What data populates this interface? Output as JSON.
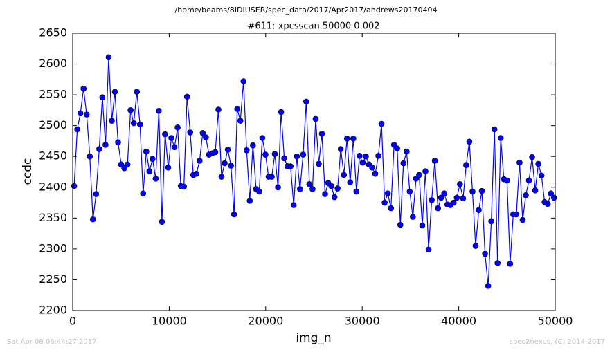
{
  "chart_data": {
    "type": "line",
    "suptitle": "/home/beams/8IDIUSER/spec_data/2017/Apr2017/andrews20170404",
    "title": "#611: xpcsscan 50000 0.002",
    "xlabel": "img_n",
    "ylabel": "ccdc",
    "footer_left": "Sat Apr 08 06:44:27 2017",
    "footer_right": "spec2nexus, (C) 2014-2017",
    "color": "#0000ff",
    "marker": "o",
    "x": [
      150,
      475,
      800,
      1125,
      1450,
      1775,
      2100,
      2425,
      2750,
      3075,
      3400,
      3725,
      4050,
      4375,
      4700,
      5025,
      5350,
      5675,
      6000,
      6325,
      6650,
      6975,
      7300,
      7625,
      7950,
      8275,
      8600,
      8925,
      9250,
      9575,
      9900,
      10225,
      10550,
      10875,
      11200,
      11525,
      11850,
      12175,
      12500,
      12825,
      13150,
      13475,
      13800,
      14125,
      14450,
      14775,
      15100,
      15425,
      15750,
      16075,
      16400,
      16725,
      17050,
      17375,
      17700,
      18025,
      18350,
      18675,
      19000,
      19325,
      19650,
      19975,
      20300,
      20625,
      20950,
      21275,
      21600,
      21925,
      22250,
      22575,
      22900,
      23225,
      23550,
      23875,
      24200,
      24525,
      24850,
      25175,
      25500,
      25825,
      26150,
      26475,
      26800,
      27125,
      27450,
      27775,
      28100,
      28425,
      28750,
      29075,
      29400,
      29725,
      30050,
      30375,
      30700,
      31025,
      31350,
      31675,
      32000,
      32325,
      32650,
      32975,
      33300,
      33625,
      33950,
      34275,
      34600,
      34925,
      35250,
      35575,
      35900,
      36225,
      36550,
      36875,
      37200,
      37525,
      37850,
      38175,
      38500,
      38825,
      39150,
      39475,
      39800,
      40125,
      40450,
      40775,
      41100,
      41425,
      41750,
      42075,
      42400,
      42725,
      43050,
      43375,
      43700,
      44025,
      44350,
      44675,
      45000,
      45325,
      45650,
      45975,
      46300,
      46625,
      46950,
      47275,
      47600,
      47925,
      48250,
      48575,
      48900,
      49225,
      49550,
      49875
    ],
    "values": [
      2402,
      2494,
      2520,
      2560,
      2518,
      2450,
      2348,
      2389,
      2462,
      2546,
      2469,
      2611,
      2508,
      2555,
      2473,
      2437,
      2431,
      2437,
      2525,
      2504,
      2555,
      2502,
      2390,
      2458,
      2426,
      2446,
      2414,
      2524,
      2344,
      2486,
      2432,
      2480,
      2465,
      2497,
      2402,
      2401,
      2547,
      2489,
      2420,
      2422,
      2443,
      2488,
      2481,
      2453,
      2455,
      2457,
      2526,
      2417,
      2439,
      2461,
      2435,
      2356,
      2527,
      2508,
      2572,
      2460,
      2378,
      2468,
      2397,
      2393,
      2480,
      2453,
      2417,
      2417,
      2454,
      2400,
      2522,
      2447,
      2434,
      2434,
      2371,
      2450,
      2397,
      2453,
      2539,
      2405,
      2397,
      2511,
      2438,
      2487,
      2389,
      2407,
      2402,
      2384,
      2398,
      2462,
      2420,
      2479,
      2408,
      2479,
      2393,
      2451,
      2440,
      2450,
      2437,
      2432,
      2422,
      2451,
      2503,
      2375,
      2390,
      2366,
      2469,
      2463,
      2339,
      2439,
      2458,
      2393,
      2352,
      2414,
      2420,
      2338,
      2426,
      2299,
      2379,
      2443,
      2366,
      2383,
      2390,
      2372,
      2371,
      2375,
      2383,
      2405,
      2382,
      2436,
      2474,
      2393,
      2305,
      2363,
      2394,
      2292,
      2240,
      2345,
      2494,
      2277,
      2480,
      2413,
      2411,
      2276,
      2356,
      2356,
      2440,
      2347,
      2387,
      2411,
      2449,
      2395,
      2438,
      2419,
      2376,
      2373,
      2390,
      2383
    ],
    "xlim": [
      0,
      50000
    ],
    "xticks": [
      0,
      10000,
      20000,
      30000,
      40000,
      50000
    ],
    "ylim": [
      2200,
      2650
    ],
    "yticks": [
      2200,
      2250,
      2300,
      2350,
      2400,
      2450,
      2500,
      2550,
      2600,
      2650
    ]
  }
}
